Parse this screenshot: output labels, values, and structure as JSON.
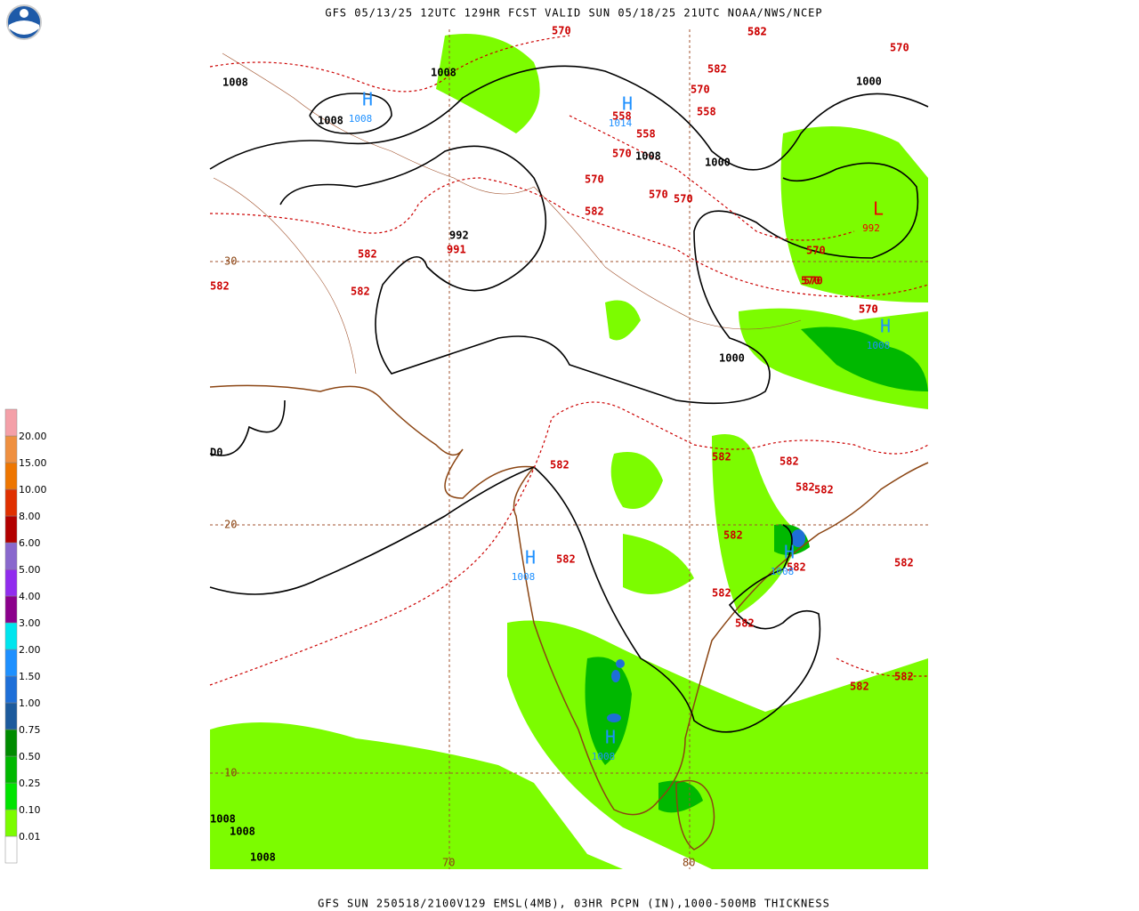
{
  "header": {
    "title": "GFS 05/13/25 12UTC 129HR FCST VALID SUN 05/18/25 21UTC NOAA/NWS/NCEP"
  },
  "footer": {
    "caption": "GFS SUN 250518/2100V129 EMSL(4MB), 03HR PCPN (IN),1000-500MB THICKNESS"
  },
  "legend": {
    "labels": [
      "0.01",
      "0.10",
      "0.25",
      "0.50",
      "0.75",
      "1.00",
      "1.50",
      "2.00",
      "3.00",
      "4.00",
      "5.00",
      "6.00",
      "8.00",
      "10.00",
      "15.00",
      "20.00"
    ],
    "colors": [
      "#ffffff",
      "#7cfc00",
      "#00e400",
      "#00b800",
      "#008b00",
      "#1c5a9c",
      "#1e6fd8",
      "#1e90ff",
      "#00e5ee",
      "#8b008b",
      "#912cee",
      "#8968cd",
      "#b20000",
      "#e03000",
      "#ee7600",
      "#ef9040",
      "#f4a0a8"
    ]
  },
  "grid": {
    "lat_labels": [
      "30",
      "20",
      "10"
    ],
    "lon_labels": [
      "70",
      "80"
    ]
  },
  "pressure_labels": [
    "1008",
    "1008",
    "1008",
    "1000",
    "1000",
    "1008",
    "1000",
    "992",
    "D0",
    "1008",
    "1008",
    "1008"
  ],
  "thickness_labels": [
    "570",
    "582",
    "570",
    "582",
    "570",
    "558",
    "558",
    "558",
    "570",
    "570",
    "570",
    "570",
    "582",
    "570",
    "570",
    "991",
    "582",
    "582",
    "582",
    "570",
    "570",
    "570",
    "582",
    "582",
    "582",
    "582",
    "582",
    "582",
    "582",
    "582",
    "582",
    "582",
    "582",
    "582",
    "582",
    "582"
  ],
  "centers": [
    {
      "symbol": "H",
      "value": "1008"
    },
    {
      "symbol": "H",
      "value": "1014"
    },
    {
      "symbol": "H",
      "value": "1008"
    },
    {
      "symbol": "H",
      "value": "1008"
    },
    {
      "symbol": "H",
      "value": "1008"
    },
    {
      "symbol": "H",
      "value": "1008"
    },
    {
      "symbol": "L",
      "value": "992"
    }
  ]
}
